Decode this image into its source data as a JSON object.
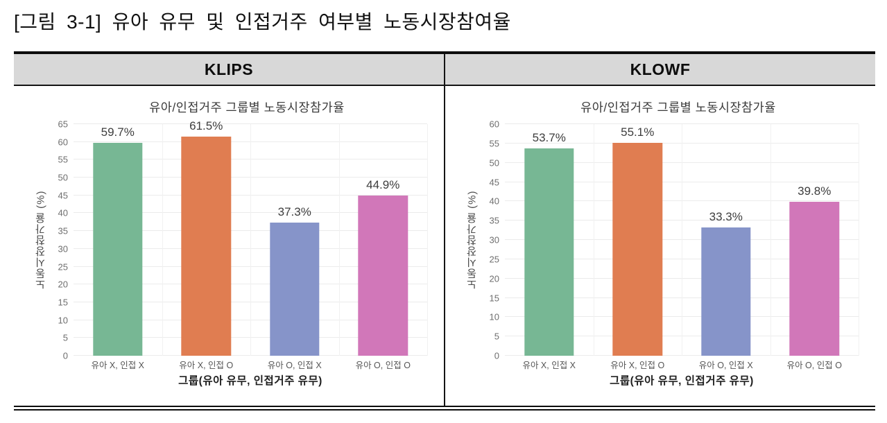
{
  "figure_title": "[그림 3-1] 유아 유무 및 인접거주 여부별 노동시장참여율",
  "panels": [
    {
      "header": "KLIPS"
    },
    {
      "header": "KLOWF"
    }
  ],
  "colors": {
    "header_bg": "#d8d8d8",
    "grid": "#ebebeb",
    "bar_green": "#77b794",
    "bar_orange": "#e07d51",
    "bar_blue": "#8694c9",
    "bar_pink": "#d177b9"
  },
  "chart_data": [
    {
      "type": "bar",
      "panel": "KLIPS",
      "title": "유아/인접거주 그룹별 노동시장참가율",
      "categories": [
        "유아 X, 인접 X",
        "유아 X, 인접 O",
        "유아 O, 인접 X",
        "유아 O, 인접 O"
      ],
      "values": [
        59.7,
        61.5,
        37.3,
        44.9
      ],
      "value_labels": [
        "59.7%",
        "61.5%",
        "37.3%",
        "44.9%"
      ],
      "xlabel": "그룹(유아 유무, 인접거주 유무)",
      "ylabel": "노동시장참가율 (%)",
      "ylim": [
        0,
        65
      ],
      "ytick_step": 5,
      "grid": true,
      "legend": false,
      "bar_colors": [
        "#77b794",
        "#e07d51",
        "#8694c9",
        "#d177b9"
      ]
    },
    {
      "type": "bar",
      "panel": "KLOWF",
      "title": "유아/인접거주 그룹별 노동시장참가율",
      "categories": [
        "유아 X, 인접 X",
        "유아 X, 인접 O",
        "유아 O, 인접 X",
        "유아 O, 인접 O"
      ],
      "values": [
        53.7,
        55.1,
        33.3,
        39.8
      ],
      "value_labels": [
        "53.7%",
        "55.1%",
        "33.3%",
        "39.8%"
      ],
      "xlabel": "그룹(유아 유무, 인접거주 유무)",
      "ylabel": "노동시장참가율 (%)",
      "ylim": [
        0,
        60
      ],
      "ytick_step": 5,
      "grid": true,
      "legend": false,
      "bar_colors": [
        "#77b794",
        "#e07d51",
        "#8694c9",
        "#d177b9"
      ]
    }
  ]
}
